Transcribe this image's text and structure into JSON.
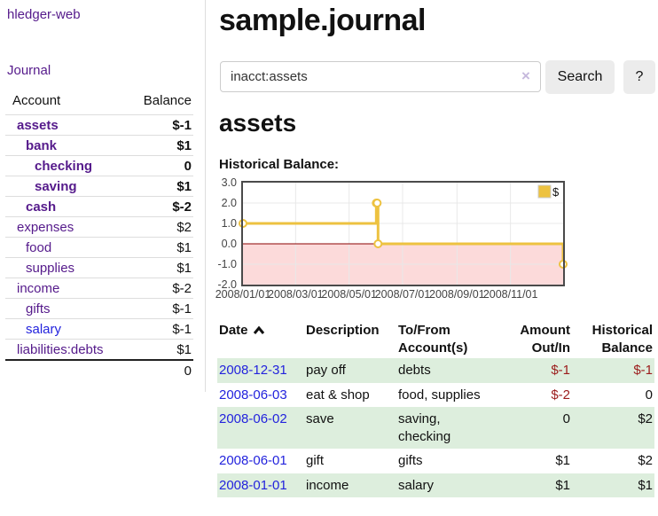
{
  "app": {
    "brand": "hledger-web",
    "nav_journal": "Journal"
  },
  "colors": {
    "link_purple": "#551a8b",
    "link_blue": "#2323dd",
    "negative_strong": "#9b1c1c",
    "negative_soft": "#c47c7c",
    "row_stripe_green": "#ddeedd",
    "button_gray": "#ececec"
  },
  "sidebar": {
    "header": {
      "account": "Account",
      "balance": "Balance"
    },
    "accounts": [
      {
        "name": "assets",
        "balance": "$-1",
        "depth": 0,
        "bold": true,
        "balance_color": "negative"
      },
      {
        "name": "bank",
        "balance": "$1",
        "depth": 1,
        "bold": true,
        "balance_color": "normal"
      },
      {
        "name": "checking",
        "balance": "0",
        "depth": 2,
        "bold": true,
        "balance_color": "normal"
      },
      {
        "name": "saving",
        "balance": "$1",
        "depth": 2,
        "bold": true,
        "balance_color": "normal"
      },
      {
        "name": "cash",
        "balance": "$-2",
        "depth": 1,
        "bold": true,
        "balance_color": "negative"
      },
      {
        "name": "expenses",
        "balance": "$2",
        "depth": 0,
        "bold": false,
        "balance_color": "normal"
      },
      {
        "name": "food",
        "balance": "$1",
        "depth": 1,
        "bold": false,
        "balance_color": "normal"
      },
      {
        "name": "supplies",
        "balance": "$1",
        "depth": 1,
        "bold": false,
        "balance_color": "normal"
      },
      {
        "name": "income",
        "balance": "$-2",
        "depth": 0,
        "bold": false,
        "balance_color": "negative-soft"
      },
      {
        "name": "gifts",
        "balance": "$-1",
        "depth": 1,
        "bold": false,
        "balance_color": "negative-soft"
      },
      {
        "name": "salary",
        "balance": "$-1",
        "depth": 1,
        "bold": false,
        "balance_color": "negative-soft",
        "link_color": "blue"
      },
      {
        "name": "liabilities:debts",
        "balance": "$1",
        "depth": 0,
        "bold": false,
        "balance_color": "normal"
      }
    ],
    "total": "0"
  },
  "header": {
    "title": "sample.journal"
  },
  "search": {
    "value": "inacct:assets",
    "clear_icon": "×",
    "button": "Search",
    "help_button": "?"
  },
  "account_page": {
    "title": "assets",
    "chart_label": "Historical Balance:"
  },
  "chart_data": {
    "type": "line",
    "step": true,
    "title": "Historical Balance",
    "x_range": [
      "2008-01-01",
      "2008-12-31"
    ],
    "y_range": [
      -2,
      3
    ],
    "y_ticks": [
      "3.0",
      "2.0",
      "1.0",
      "0.0",
      "-1.0",
      "-2.0"
    ],
    "x_ticks": [
      "2008/01/01",
      "2008/03/01",
      "2008/05/01",
      "2008/07/01",
      "2008/09/01",
      "2008/11/01"
    ],
    "series": [
      {
        "name": "$",
        "color": "#edc240",
        "points": [
          [
            "2008-01-01",
            1
          ],
          [
            "2008-06-01",
            2
          ],
          [
            "2008-06-02",
            2
          ],
          [
            "2008-06-03",
            0
          ],
          [
            "2008-12-31",
            -1
          ]
        ]
      }
    ],
    "legend_position": "top-right",
    "grid": true,
    "colors": {
      "negative_region": "#fcdada",
      "zero_line": "#8b0000",
      "grid": "#e8e8e8",
      "border": "#4a4a4a",
      "axis_text": "#444444",
      "marker_fill": "#ffffff"
    }
  },
  "register": {
    "columns": [
      {
        "label": "Date"
      },
      {
        "label": "Description"
      },
      {
        "label": "To/From\nAccount(s)"
      },
      {
        "label": "Amount\nOut/In"
      },
      {
        "label": "Historical\nBalance"
      }
    ],
    "rows": [
      {
        "date": "2008-12-31",
        "description": "pay off",
        "accounts": "debts",
        "amount": "$-1",
        "amount_negative": true,
        "balance": "$-1",
        "balance_negative": true,
        "shaded": true
      },
      {
        "date": "2008-06-03",
        "description": "eat & shop",
        "accounts": "food, supplies",
        "amount": "$-2",
        "amount_negative": true,
        "balance": "0",
        "balance_negative": false,
        "shaded": false
      },
      {
        "date": "2008-06-02",
        "description": "save",
        "accounts": "saving, checking",
        "amount": "0",
        "amount_negative": false,
        "balance": "$2",
        "balance_negative": false,
        "shaded": true
      },
      {
        "date": "2008-06-01",
        "description": "gift",
        "accounts": "gifts",
        "amount": "$1",
        "amount_negative": false,
        "balance": "$2",
        "balance_negative": false,
        "shaded": false
      },
      {
        "date": "2008-01-01",
        "description": "income",
        "accounts": "salary",
        "amount": "$1",
        "amount_negative": false,
        "balance": "$1",
        "balance_negative": false,
        "shaded": true
      }
    ]
  }
}
